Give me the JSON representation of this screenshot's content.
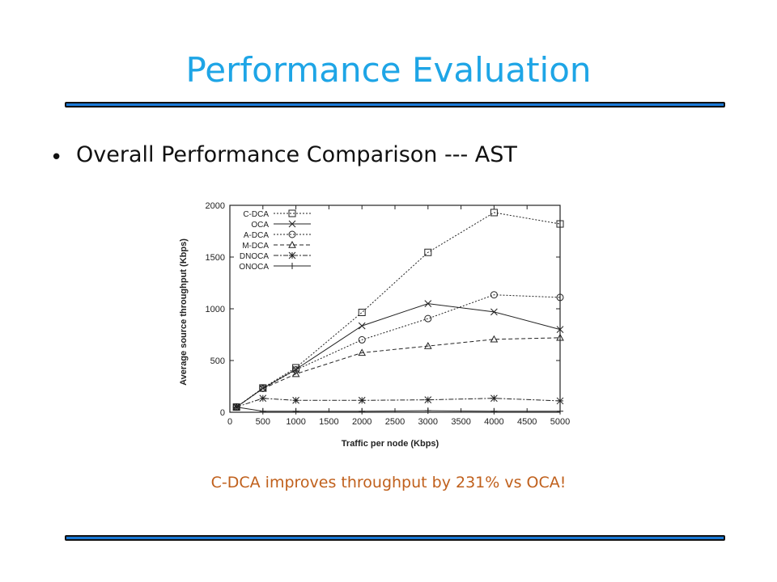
{
  "slide": {
    "title": "Performance Evaluation",
    "bullet": "Overall Performance Comparison --- AST",
    "caption": "C-DCA improves throughput by 231% vs OCA!",
    "caption_color": "#c0601c",
    "title_color": "#1ea5e6",
    "rule_color": "#1a79d6"
  },
  "chart_data": {
    "type": "line",
    "title": "",
    "xlabel": "Traffic per node (Kbps)",
    "ylabel": "Average source throughput (Kbps)",
    "xlim": [
      0,
      5000
    ],
    "ylim": [
      0,
      2000
    ],
    "xticks": [
      "0",
      "500",
      "1000",
      "1500",
      "2000",
      "2500",
      "3000",
      "3500",
      "4000",
      "4500",
      "5000"
    ],
    "yticks": [
      "0",
      "500",
      "1000",
      "1500",
      "2000"
    ],
    "legend_position": "top-left",
    "grid": false,
    "x": [
      100,
      500,
      1000,
      2000,
      3000,
      4000,
      5000
    ],
    "series": [
      {
        "name": "C-DCA",
        "marker": "square",
        "dash": "dotted",
        "values": [
          50,
          235,
          430,
          965,
          1545,
          1930,
          1820
        ]
      },
      {
        "name": "OCA",
        "marker": "x",
        "dash": "solid",
        "values": [
          50,
          230,
          415,
          835,
          1050,
          970,
          800
        ]
      },
      {
        "name": "A-DCA",
        "marker": "circle",
        "dash": "dotted",
        "values": [
          50,
          230,
          410,
          700,
          905,
          1135,
          1110
        ]
      },
      {
        "name": "M-DCA",
        "marker": "triangle",
        "dash": "dashed",
        "values": [
          50,
          228,
          370,
          575,
          640,
          705,
          720
        ]
      },
      {
        "name": "DNOCA",
        "marker": "asterisk",
        "dash": "dashdot",
        "values": [
          50,
          135,
          115,
          115,
          120,
          135,
          110
        ]
      },
      {
        "name": "ONOCA",
        "marker": "plus",
        "dash": "solid",
        "values": [
          50,
          10,
          10,
          10,
          15,
          10,
          10
        ]
      }
    ]
  }
}
